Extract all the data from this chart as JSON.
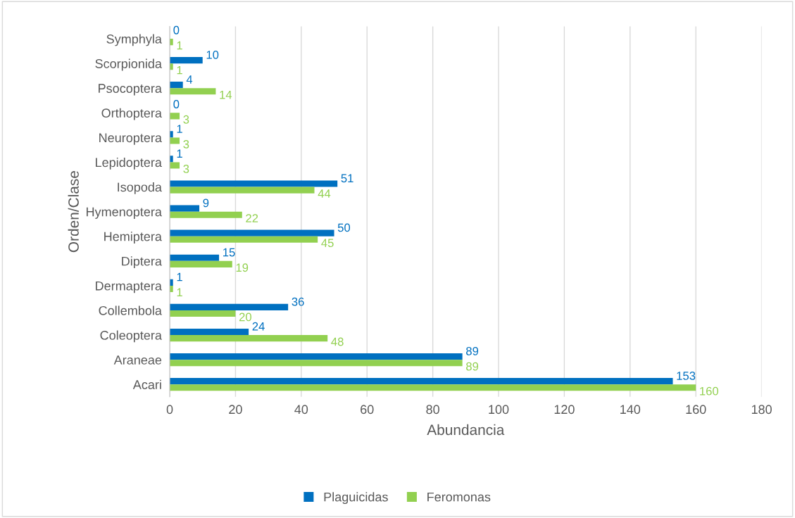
{
  "chart_data": {
    "type": "bar",
    "orientation": "horizontal",
    "xlabel": "Abundancia",
    "ylabel": "Orden/Clase",
    "categories": [
      "Symphyla",
      "Scorpionida",
      "Psocoptera",
      "Orthoptera",
      "Neuroptera",
      "Lepidoptera",
      "Isopoda",
      "Hymenoptera",
      "Hemiptera",
      "Diptera",
      "Dermaptera",
      "Collembola",
      "Coleoptera",
      "Araneae",
      "Acari"
    ],
    "series": [
      {
        "name": "Plaguicidas",
        "color": "#0070c0",
        "values": [
          0,
          10,
          4,
          0,
          1,
          1,
          51,
          9,
          50,
          15,
          1,
          36,
          24,
          89,
          153
        ]
      },
      {
        "name": "Feromonas",
        "color": "#92d050",
        "values": [
          1,
          1,
          14,
          3,
          3,
          3,
          44,
          22,
          45,
          19,
          1,
          20,
          48,
          89,
          160
        ]
      }
    ],
    "xlim": [
      0,
      180
    ],
    "xticks": [
      0,
      20,
      40,
      60,
      80,
      100,
      120,
      140,
      160,
      180
    ],
    "grid": "x",
    "legend": "bottom",
    "data_labels": true
  }
}
